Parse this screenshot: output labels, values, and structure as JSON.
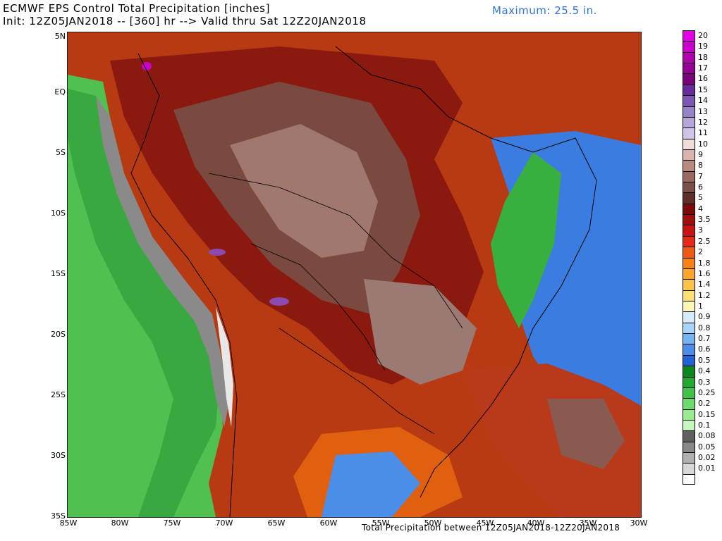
{
  "title": {
    "line1": "ECMWF EPS Control Total Precipitation [inches]",
    "line2": "Init: 12Z05JAN2018 -- [360] hr --> Valid thru Sat 12Z20JAN2018",
    "maximum": "Maximum: 25.5 in."
  },
  "footer": "Total Precipitation between 12Z05JAN2018-12Z20JAN2018",
  "axes": {
    "lat_labels": [
      "5N",
      "EQ",
      "5S",
      "10S",
      "15S",
      "20S",
      "25S",
      "30S",
      "35S"
    ],
    "lon_labels": [
      "85W",
      "80W",
      "75W",
      "70W",
      "65W",
      "60W",
      "55W",
      "50W",
      "45W",
      "40W",
      "35W",
      "30W"
    ]
  },
  "colorbar": [
    {
      "label": "20",
      "color": "#e400e4"
    },
    {
      "label": "19",
      "color": "#cc00cc"
    },
    {
      "label": "18",
      "color": "#b000b0"
    },
    {
      "label": "17",
      "color": "#960096"
    },
    {
      "label": "16",
      "color": "#7c007c"
    },
    {
      "label": "15",
      "color": "#6a2c9c"
    },
    {
      "label": "14",
      "color": "#7c58b4"
    },
    {
      "label": "13",
      "color": "#9a82c8"
    },
    {
      "label": "12",
      "color": "#b6a6dc"
    },
    {
      "label": "11",
      "color": "#d0c4ea"
    },
    {
      "label": "10",
      "color": "#f0dcd8"
    },
    {
      "label": "9",
      "color": "#d8b4ac"
    },
    {
      "label": "8",
      "color": "#b98a80"
    },
    {
      "label": "7",
      "color": "#9a6a60"
    },
    {
      "label": "6",
      "color": "#7c5046"
    },
    {
      "label": "5",
      "color": "#5e3028"
    },
    {
      "label": "4",
      "color": "#7c0a0a"
    },
    {
      "label": "3.5",
      "color": "#a00e0e"
    },
    {
      "label": "3",
      "color": "#c81414"
    },
    {
      "label": "2.5",
      "color": "#e42a14"
    },
    {
      "label": "2",
      "color": "#f25a14"
    },
    {
      "label": "1.8",
      "color": "#fa8214"
    },
    {
      "label": "1.6",
      "color": "#fca42c"
    },
    {
      "label": "1.4",
      "color": "#fcc446"
    },
    {
      "label": "1.2",
      "color": "#fce070"
    },
    {
      "label": "1",
      "color": "#fcf8b4"
    },
    {
      "label": "0.9",
      "color": "#d4ecfc"
    },
    {
      "label": "0.8",
      "color": "#a6d4fa"
    },
    {
      "label": "0.7",
      "color": "#74b4f4"
    },
    {
      "label": "0.6",
      "color": "#4a8ee8"
    },
    {
      "label": "0.5",
      "color": "#1e64d8"
    },
    {
      "label": "0.4",
      "color": "#0a8a1e"
    },
    {
      "label": "0.3",
      "color": "#22aa30"
    },
    {
      "label": "0.25",
      "color": "#40c448"
    },
    {
      "label": "0.2",
      "color": "#6cdc6c"
    },
    {
      "label": "0.15",
      "color": "#98ec90"
    },
    {
      "label": "0.1",
      "color": "#c4f8bc"
    },
    {
      "label": "0.08",
      "color": "#606060"
    },
    {
      "label": "0.05",
      "color": "#888888"
    },
    {
      "label": "0.02",
      "color": "#b0b0b0"
    },
    {
      "label": "0.01",
      "color": "#d8d8d8"
    },
    {
      "label": "",
      "color": "#ffffff"
    }
  ]
}
